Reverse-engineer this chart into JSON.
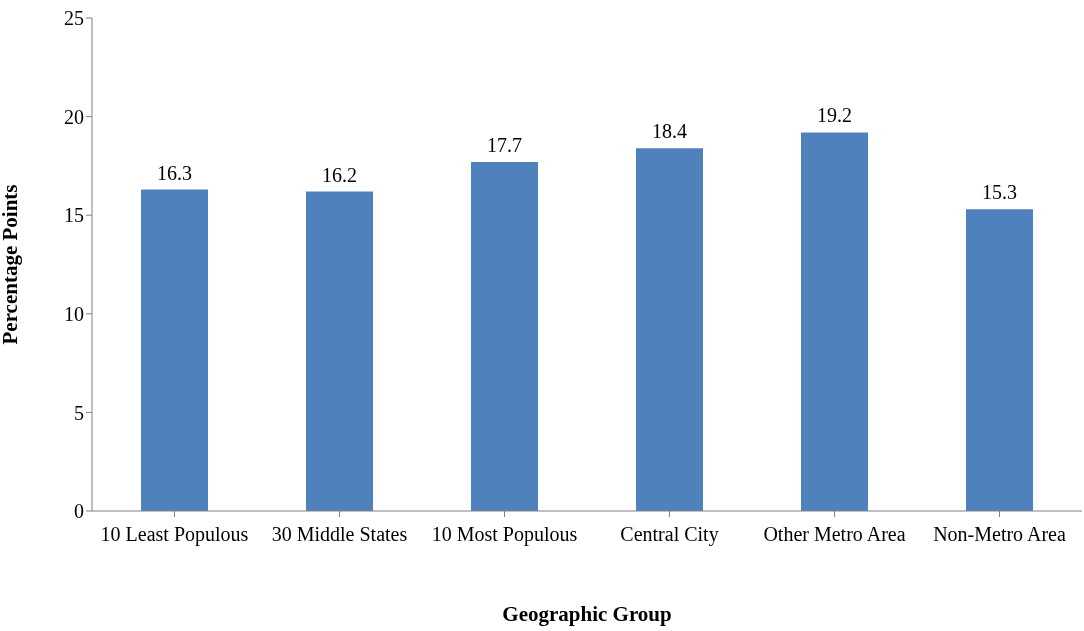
{
  "chart_data": {
    "type": "bar",
    "xlabel": "Geographic Group",
    "ylabel": "Percentage Points",
    "categories": [
      "10 Least Populous",
      "30 Middle States",
      "10 Most Populous",
      "Central City",
      "Other Metro Area",
      "Non-Metro Area"
    ],
    "values": [
      16.3,
      16.2,
      17.7,
      18.4,
      19.2,
      15.3
    ],
    "color": "#4f81bd",
    "ylim": [
      0,
      25
    ],
    "yticks": [
      0,
      5,
      10,
      15,
      20,
      25
    ],
    "data_labels": true,
    "grid": false,
    "legend": false
  }
}
